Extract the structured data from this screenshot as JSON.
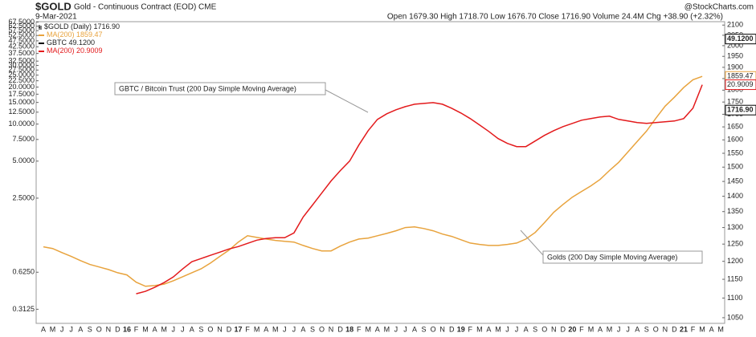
{
  "chart_data": {
    "type": "line",
    "title": "$GOLD",
    "subtitle": "Gold - Continuous Contract (EOD) CME",
    "date": "9-Mar-2021",
    "quote": "Open 1679.30 High 1718.70 Low 1676.70 Close 1716.90 Volume 24.4M Chg +38.90 (+2.32%)",
    "credit": "@StockCharts.com",
    "categories": [
      "A",
      "M",
      "J",
      "J",
      "A",
      "S",
      "O",
      "N",
      "D",
      "16",
      "F",
      "M",
      "A",
      "M",
      "J",
      "J",
      "A",
      "S",
      "O",
      "N",
      "D",
      "17",
      "F",
      "M",
      "A",
      "M",
      "J",
      "J",
      "A",
      "S",
      "O",
      "N",
      "D",
      "18",
      "F",
      "M",
      "A",
      "M",
      "J",
      "J",
      "A",
      "S",
      "O",
      "N",
      "D",
      "19",
      "F",
      "M",
      "A",
      "M",
      "J",
      "J",
      "A",
      "S",
      "O",
      "N",
      "D",
      "20",
      "F",
      "M",
      "A",
      "M",
      "J",
      "J",
      "A",
      "S",
      "O",
      "N",
      "D",
      "21",
      "F",
      "M",
      "A",
      "M"
    ],
    "series": [
      {
        "name": "MA(200)",
        "color": "#e8a33d",
        "axis": "y2",
        "values": [
          1242,
          1237,
          1225,
          1214,
          1202,
          1191,
          1184,
          1177,
          1168,
          1162,
          1142,
          1131,
          1133,
          1137,
          1146,
          1157,
          1168,
          1179,
          1195,
          1214,
          1232,
          1256,
          1275,
          1270,
          1265,
          1261,
          1258,
          1256,
          1246,
          1237,
          1230,
          1230,
          1244,
          1256,
          1265,
          1268,
          1275,
          1282,
          1290,
          1300,
          1302,
          1297,
          1290,
          1280,
          1273,
          1263,
          1253,
          1249,
          1246,
          1246,
          1249,
          1253,
          1265,
          1285,
          1315,
          1348,
          1373,
          1397,
          1416,
          1435,
          1457,
          1488,
          1517,
          1555,
          1594,
          1634,
          1684,
          1733,
          1770,
          1811,
          1845,
          1859.47,
          null,
          null
        ]
      },
      {
        "name": "MA(200)",
        "color": "#e31a1c",
        "values": [
          null,
          null,
          null,
          null,
          null,
          null,
          null,
          null,
          null,
          null,
          0.418,
          0.437,
          0.471,
          0.515,
          0.572,
          0.664,
          0.76,
          0.807,
          0.857,
          0.91,
          0.966,
          1.01,
          1.073,
          1.139,
          1.174,
          1.191,
          1.191,
          1.303,
          1.757,
          2.2,
          2.75,
          3.45,
          4.19,
          5.01,
          6.76,
          8.85,
          10.92,
          12.13,
          13.07,
          13.87,
          14.51,
          14.73,
          14.95,
          14.51,
          13.46,
          12.3,
          11.08,
          9.83,
          8.72,
          7.62,
          6.97,
          6.56,
          6.56,
          7.29,
          8.1,
          8.85,
          9.54,
          10.13,
          10.76,
          11.08,
          11.42,
          11.59,
          10.92,
          10.59,
          10.28,
          10.13,
          10.28,
          10.44,
          10.59,
          11.08,
          13.46,
          20.9009,
          null,
          null
        ]
      }
    ],
    "prices": [
      {
        "name": "$GOLD (Daily)",
        "axis": "y2",
        "last": {
          "value": 1716.9,
          "label": "1716.90"
        }
      },
      {
        "name": "GBTC",
        "last": {
          "value": 49.12,
          "label": "49.1200"
        }
      }
    ],
    "annotations": [
      "GBTC / Bitcoin Trust (200 Day Simple Moving Average)",
      "Golds (200 Day Simple Moving Average)"
    ],
    "log_y": true,
    "ylim": [
      0.24,
      68
    ],
    "yticks": [
      {
        "value": 0.3125,
        "label": "0.3125"
      },
      {
        "value": 0.625,
        "label": "0.6250"
      },
      {
        "value": 2.5,
        "label": "2.5000"
      },
      {
        "value": 5,
        "label": "5.0000"
      },
      {
        "value": 7.5,
        "label": "7.5000"
      },
      {
        "value": 10,
        "label": "10.0000"
      },
      {
        "value": 12.5,
        "label": "12.5000"
      },
      {
        "value": 15,
        "label": "15.0000"
      },
      {
        "value": 17.5,
        "label": "17.5000"
      },
      {
        "value": 20,
        "label": "20.0000"
      },
      {
        "value": 22.5,
        "label": "22.5000"
      },
      {
        "value": 25,
        "label": "25.0000"
      },
      {
        "value": 27.5,
        "label": "27.5000"
      },
      {
        "value": 30,
        "label": "30.0000"
      },
      {
        "value": 32.5,
        "label": "32.5000"
      },
      {
        "value": 37.5,
        "label": "37.5000"
      },
      {
        "value": 42.5,
        "label": "42.5000"
      },
      {
        "value": 47.5,
        "label": "47.5000"
      },
      {
        "value": 52.5,
        "label": "52.5000"
      },
      {
        "value": 57.5,
        "label": "57.5000"
      },
      {
        "value": 62.5,
        "label": "62.5000"
      },
      {
        "value": 67.5,
        "label": "67.5000"
      }
    ],
    "log_y2": true,
    "y2lim": [
      1036,
      2117
    ],
    "y2ticks": [
      1050,
      1100,
      1150,
      1200,
      1250,
      1300,
      1350,
      1400,
      1450,
      1500,
      1550,
      1600,
      1650,
      1700,
      1750,
      1800,
      1850,
      1900,
      1950,
      2000,
      2050,
      2100
    ],
    "grid": false
  }
}
